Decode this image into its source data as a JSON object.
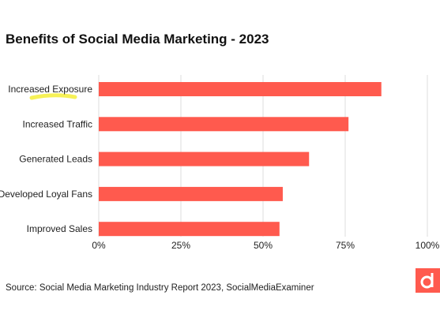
{
  "chart_data": {
    "type": "bar",
    "orientation": "horizontal",
    "title": "Benefits of Social Media Marketing - 2023",
    "categories": [
      "Increased Exposure",
      "Increased Traffic",
      "Generated Leads",
      "Developed Loyal Fans",
      "Improved Sales"
    ],
    "values": [
      86,
      76,
      64,
      56,
      55
    ],
    "xlim": [
      0,
      100
    ],
    "xticks": [
      "0%",
      "25%",
      "50%",
      "75%",
      "100%"
    ],
    "xtick_values": [
      0,
      25,
      50,
      75,
      100
    ],
    "grid": "vertical",
    "bar_color": "#ff5a4e",
    "highlight_color": "#f4ef3a"
  },
  "source": "Source:  Social Media Marketing Industry Report 2023, SocialMediaExaminer",
  "logo": {
    "icon": "d-logo-icon",
    "color": "#ff5a4e"
  }
}
